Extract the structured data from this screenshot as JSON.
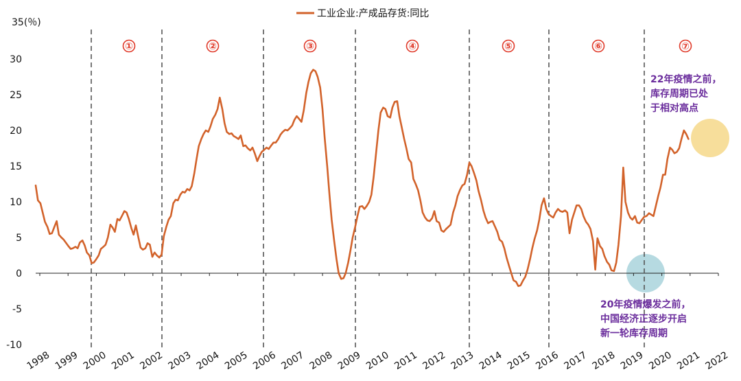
{
  "chart_data": {
    "type": "line",
    "legend": "工业企业:产成品存货:同比",
    "ylabel": "35(％)",
    "ylim": [
      -10,
      35
    ],
    "yticks": [
      -10,
      -5,
      0,
      5,
      10,
      15,
      20,
      25,
      30
    ],
    "xticks": [
      "1998",
      "1999",
      "2000",
      "2001",
      "2002",
      "2003",
      "2004",
      "2005",
      "2006",
      "2007",
      "2008",
      "2009",
      "2010",
      "2011",
      "2012",
      "2013",
      "2014",
      "2015",
      "2016",
      "2017",
      "2018",
      "2019",
      "2020",
      "2021",
      "2022"
    ],
    "xlim": [
      1998.0,
      2022.4
    ],
    "color": "#d2622a",
    "series": [
      {
        "points": [
          [
            1998.0,
            12.3
          ],
          [
            1998.08,
            10.2
          ],
          [
            1998.17,
            9.8
          ],
          [
            1998.25,
            8.5
          ],
          [
            1998.33,
            7.2
          ],
          [
            1998.42,
            6.5
          ],
          [
            1998.5,
            5.5
          ],
          [
            1998.58,
            5.6
          ],
          [
            1998.67,
            6.5
          ],
          [
            1998.75,
            7.3
          ],
          [
            1998.83,
            5.4
          ],
          [
            1998.92,
            5.0
          ],
          [
            1999.0,
            4.7
          ],
          [
            1999.17,
            3.8
          ],
          [
            1999.25,
            3.4
          ],
          [
            1999.33,
            3.5
          ],
          [
            1999.42,
            3.7
          ],
          [
            1999.5,
            3.5
          ],
          [
            1999.58,
            4.3
          ],
          [
            1999.67,
            4.6
          ],
          [
            1999.75,
            3.9
          ],
          [
            1999.83,
            2.9
          ],
          [
            1999.92,
            2.5
          ],
          [
            2000.0,
            1.4
          ],
          [
            2000.08,
            1.5
          ],
          [
            2000.17,
            2.0
          ],
          [
            2000.25,
            2.5
          ],
          [
            2000.33,
            3.4
          ],
          [
            2000.42,
            3.7
          ],
          [
            2000.5,
            4.0
          ],
          [
            2000.58,
            5.0
          ],
          [
            2000.67,
            6.8
          ],
          [
            2000.75,
            6.4
          ],
          [
            2000.83,
            5.8
          ],
          [
            2000.92,
            7.6
          ],
          [
            2001.0,
            7.4
          ],
          [
            2001.08,
            8.0
          ],
          [
            2001.17,
            8.7
          ],
          [
            2001.25,
            8.5
          ],
          [
            2001.33,
            7.6
          ],
          [
            2001.42,
            6.3
          ],
          [
            2001.5,
            5.4
          ],
          [
            2001.58,
            6.7
          ],
          [
            2001.67,
            5.0
          ],
          [
            2001.75,
            3.6
          ],
          [
            2001.83,
            3.3
          ],
          [
            2001.92,
            3.5
          ],
          [
            2002.0,
            4.2
          ],
          [
            2002.08,
            4.0
          ],
          [
            2002.17,
            2.3
          ],
          [
            2002.25,
            2.9
          ],
          [
            2002.33,
            2.5
          ],
          [
            2002.42,
            2.2
          ],
          [
            2002.5,
            2.6
          ],
          [
            2002.58,
            5.2
          ],
          [
            2002.67,
            6.5
          ],
          [
            2002.75,
            7.5
          ],
          [
            2002.83,
            8.0
          ],
          [
            2002.92,
            9.8
          ],
          [
            2003.0,
            10.3
          ],
          [
            2003.08,
            10.2
          ],
          [
            2003.17,
            11.0
          ],
          [
            2003.25,
            11.4
          ],
          [
            2003.33,
            11.3
          ],
          [
            2003.42,
            11.8
          ],
          [
            2003.5,
            11.6
          ],
          [
            2003.58,
            12.2
          ],
          [
            2003.67,
            14.0
          ],
          [
            2003.75,
            16.0
          ],
          [
            2003.83,
            17.8
          ],
          [
            2003.92,
            18.8
          ],
          [
            2004.0,
            19.5
          ],
          [
            2004.08,
            20.0
          ],
          [
            2004.17,
            19.8
          ],
          [
            2004.25,
            20.6
          ],
          [
            2004.33,
            21.6
          ],
          [
            2004.42,
            22.2
          ],
          [
            2004.5,
            23.0
          ],
          [
            2004.58,
            24.6
          ],
          [
            2004.67,
            23.0
          ],
          [
            2004.75,
            21.0
          ],
          [
            2004.83,
            19.8
          ],
          [
            2004.92,
            19.5
          ],
          [
            2005.0,
            19.6
          ],
          [
            2005.08,
            19.2
          ],
          [
            2005.17,
            19.0
          ],
          [
            2005.25,
            18.8
          ],
          [
            2005.33,
            19.3
          ],
          [
            2005.42,
            17.8
          ],
          [
            2005.5,
            17.9
          ],
          [
            2005.58,
            17.5
          ],
          [
            2005.67,
            17.2
          ],
          [
            2005.75,
            17.6
          ],
          [
            2005.83,
            16.8
          ],
          [
            2005.92,
            15.7
          ],
          [
            2006.0,
            16.4
          ],
          [
            2006.08,
            17.0
          ],
          [
            2006.17,
            17.3
          ],
          [
            2006.25,
            17.6
          ],
          [
            2006.33,
            17.4
          ],
          [
            2006.42,
            17.9
          ],
          [
            2006.5,
            18.3
          ],
          [
            2006.58,
            18.3
          ],
          [
            2006.67,
            18.8
          ],
          [
            2006.75,
            19.4
          ],
          [
            2006.83,
            19.8
          ],
          [
            2006.92,
            20.1
          ],
          [
            2007.0,
            20.0
          ],
          [
            2007.08,
            20.3
          ],
          [
            2007.17,
            20.7
          ],
          [
            2007.25,
            21.5
          ],
          [
            2007.33,
            22.0
          ],
          [
            2007.42,
            21.6
          ],
          [
            2007.5,
            21.2
          ],
          [
            2007.58,
            22.8
          ],
          [
            2007.67,
            25.2
          ],
          [
            2007.75,
            26.8
          ],
          [
            2007.83,
            28.0
          ],
          [
            2007.92,
            28.5
          ],
          [
            2008.0,
            28.3
          ],
          [
            2008.08,
            27.5
          ],
          [
            2008.17,
            26.0
          ],
          [
            2008.25,
            23.0
          ],
          [
            2008.33,
            19.0
          ],
          [
            2008.42,
            15.0
          ],
          [
            2008.5,
            11.0
          ],
          [
            2008.58,
            7.5
          ],
          [
            2008.67,
            4.5
          ],
          [
            2008.75,
            2.0
          ],
          [
            2008.83,
            0.0
          ],
          [
            2008.92,
            -0.8
          ],
          [
            2009.0,
            -0.7
          ],
          [
            2009.08,
            0.0
          ],
          [
            2009.17,
            1.5
          ],
          [
            2009.25,
            3.2
          ],
          [
            2009.33,
            5.0
          ],
          [
            2009.42,
            6.5
          ],
          [
            2009.5,
            8.0
          ],
          [
            2009.58,
            9.3
          ],
          [
            2009.67,
            9.4
          ],
          [
            2009.75,
            9.0
          ],
          [
            2009.83,
            9.4
          ],
          [
            2009.92,
            10.0
          ],
          [
            2010.0,
            11.0
          ],
          [
            2010.08,
            13.5
          ],
          [
            2010.17,
            17.0
          ],
          [
            2010.25,
            20.0
          ],
          [
            2010.33,
            22.5
          ],
          [
            2010.42,
            23.2
          ],
          [
            2010.5,
            23.0
          ],
          [
            2010.58,
            22.0
          ],
          [
            2010.67,
            21.8
          ],
          [
            2010.75,
            23.2
          ],
          [
            2010.83,
            24.0
          ],
          [
            2010.92,
            24.1
          ],
          [
            2011.0,
            22.0
          ],
          [
            2011.08,
            20.5
          ],
          [
            2011.17,
            18.8
          ],
          [
            2011.25,
            17.5
          ],
          [
            2011.33,
            16.0
          ],
          [
            2011.42,
            15.5
          ],
          [
            2011.5,
            13.2
          ],
          [
            2011.58,
            12.5
          ],
          [
            2011.67,
            11.6
          ],
          [
            2011.75,
            10.2
          ],
          [
            2011.83,
            8.5
          ],
          [
            2011.92,
            7.8
          ],
          [
            2012.0,
            7.4
          ],
          [
            2012.08,
            7.3
          ],
          [
            2012.17,
            7.7
          ],
          [
            2012.25,
            8.7
          ],
          [
            2012.33,
            7.3
          ],
          [
            2012.42,
            7.1
          ],
          [
            2012.5,
            6.0
          ],
          [
            2012.58,
            5.8
          ],
          [
            2012.67,
            6.2
          ],
          [
            2012.75,
            6.5
          ],
          [
            2012.83,
            6.8
          ],
          [
            2012.92,
            8.5
          ],
          [
            2013.0,
            9.5
          ],
          [
            2013.08,
            10.8
          ],
          [
            2013.17,
            11.7
          ],
          [
            2013.25,
            12.3
          ],
          [
            2013.33,
            12.5
          ],
          [
            2013.42,
            13.8
          ],
          [
            2013.5,
            15.5
          ],
          [
            2013.58,
            15.0
          ],
          [
            2013.67,
            14.0
          ],
          [
            2013.75,
            13.0
          ],
          [
            2013.83,
            11.5
          ],
          [
            2013.92,
            10.2
          ],
          [
            2014.0,
            8.8
          ],
          [
            2014.08,
            7.8
          ],
          [
            2014.17,
            7.0
          ],
          [
            2014.25,
            7.2
          ],
          [
            2014.33,
            7.3
          ],
          [
            2014.42,
            6.5
          ],
          [
            2014.5,
            5.8
          ],
          [
            2014.58,
            4.7
          ],
          [
            2014.67,
            4.4
          ],
          [
            2014.75,
            3.5
          ],
          [
            2014.83,
            2.2
          ],
          [
            2014.92,
            1.0
          ],
          [
            2015.0,
            0.0
          ],
          [
            2015.08,
            -1.0
          ],
          [
            2015.17,
            -1.2
          ],
          [
            2015.25,
            -1.8
          ],
          [
            2015.33,
            -1.7
          ],
          [
            2015.42,
            -1.0
          ],
          [
            2015.5,
            -0.5
          ],
          [
            2015.58,
            0.5
          ],
          [
            2015.67,
            2.0
          ],
          [
            2015.75,
            3.5
          ],
          [
            2015.83,
            4.8
          ],
          [
            2015.92,
            6.0
          ],
          [
            2016.0,
            7.5
          ],
          [
            2016.08,
            9.5
          ],
          [
            2016.17,
            10.5
          ],
          [
            2016.25,
            9.0
          ],
          [
            2016.33,
            8.3
          ],
          [
            2016.42,
            8.0
          ],
          [
            2016.5,
            7.8
          ],
          [
            2016.58,
            8.5
          ],
          [
            2016.67,
            9.0
          ],
          [
            2016.75,
            8.7
          ],
          [
            2016.83,
            8.6
          ],
          [
            2016.92,
            8.8
          ],
          [
            2017.0,
            8.5
          ],
          [
            2017.08,
            5.6
          ],
          [
            2017.17,
            7.5
          ],
          [
            2017.25,
            8.5
          ],
          [
            2017.33,
            9.5
          ],
          [
            2017.42,
            9.5
          ],
          [
            2017.5,
            9.0
          ],
          [
            2017.58,
            8.0
          ],
          [
            2017.67,
            7.2
          ],
          [
            2017.75,
            6.8
          ],
          [
            2017.83,
            6.2
          ],
          [
            2017.92,
            4.5
          ],
          [
            2018.0,
            0.5
          ],
          [
            2018.08,
            4.9
          ],
          [
            2018.17,
            3.8
          ],
          [
            2018.25,
            3.4
          ],
          [
            2018.33,
            2.4
          ],
          [
            2018.42,
            1.6
          ],
          [
            2018.5,
            1.2
          ],
          [
            2018.58,
            0.4
          ],
          [
            2018.67,
            0.3
          ],
          [
            2018.75,
            1.5
          ],
          [
            2018.83,
            4.0
          ],
          [
            2018.92,
            8.0
          ],
          [
            2019.0,
            14.8
          ],
          [
            2019.08,
            10.0
          ],
          [
            2019.17,
            8.5
          ],
          [
            2019.25,
            7.8
          ],
          [
            2019.33,
            7.5
          ],
          [
            2019.42,
            8.0
          ],
          [
            2019.5,
            7.1
          ],
          [
            2019.58,
            7.0
          ],
          [
            2019.67,
            7.5
          ],
          [
            2019.75,
            7.9
          ],
          [
            2019.83,
            8.0
          ],
          [
            2019.92,
            8.4
          ],
          [
            2020.0,
            8.2
          ],
          [
            2020.08,
            8.0
          ],
          [
            2020.17,
            9.5
          ],
          [
            2020.25,
            10.8
          ],
          [
            2020.33,
            12.0
          ],
          [
            2020.42,
            13.8
          ],
          [
            2020.5,
            13.8
          ],
          [
            2020.58,
            16.0
          ],
          [
            2020.67,
            17.6
          ],
          [
            2020.75,
            17.3
          ],
          [
            2020.83,
            16.8
          ],
          [
            2020.92,
            17.0
          ],
          [
            2021.0,
            17.5
          ],
          [
            2021.08,
            18.8
          ],
          [
            2021.17,
            20.0
          ],
          [
            2021.25,
            19.5
          ],
          [
            2021.33,
            18.8
          ]
        ]
      }
    ],
    "phases": [
      {
        "label": "①",
        "x": 2000.7
      },
      {
        "label": "②",
        "x": 2003.8
      },
      {
        "label": "③",
        "x": 2007.6
      },
      {
        "label": "④",
        "x": 2011.6
      },
      {
        "label": "⑤",
        "x": 2015.6
      },
      {
        "label": "⑥",
        "x": 2019.5
      },
      {
        "label": "⑦",
        "x": 2022.9
      }
    ],
    "dividers": [
      2000.0,
      2002.5,
      2006.1,
      2009.3,
      2013.3,
      2016.3,
      2019.5
    ],
    "annotations": [
      {
        "lines": [
          "22年疫情之前，",
          "库存周期已处",
          "于相对高点"
        ],
        "color": "#6a2c9c"
      },
      {
        "lines": [
          "20年疫情爆发之前，",
          "中国经济正逐步开启",
          "新一轮库存周期"
        ],
        "color": "#6a2c9c"
      }
    ],
    "highlights": [
      {
        "x": 2021.2,
        "y": 19.0,
        "color": "#f6d88a"
      },
      {
        "x": 2019.5,
        "y": 0.0,
        "color": "#a9d3dc"
      }
    ]
  }
}
